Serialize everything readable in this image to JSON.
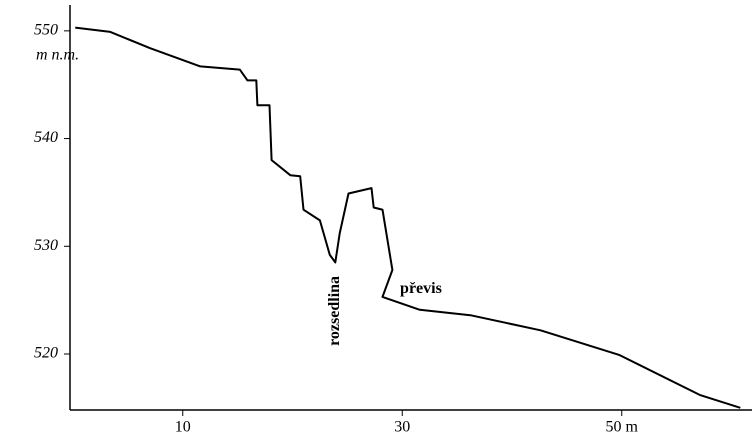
{
  "chart_data": {
    "type": "line",
    "y_label": "m n.m.",
    "x": [
      0.2,
      3.4,
      7.0,
      11.6,
      15.2,
      15.9,
      16.7,
      16.8,
      17.9,
      18.1,
      19.8,
      20.7,
      21.0,
      22.5,
      23.4,
      23.9,
      24.3,
      25.1,
      27.2,
      27.4,
      28.2,
      29.1,
      28.2,
      31.6,
      36.2,
      42.6,
      49.8,
      57.1,
      60.8
    ],
    "values": [
      550.3,
      549.9,
      548.4,
      546.7,
      546.4,
      545.4,
      545.4,
      543.1,
      543.1,
      538.0,
      536.6,
      536.5,
      533.4,
      532.4,
      529.2,
      528.5,
      531.2,
      534.9,
      535.4,
      533.6,
      533.4,
      527.8,
      525.3,
      524.1,
      523.6,
      522.2,
      519.9,
      516.2,
      515.0
    ],
    "color": "#000000",
    "xlim": [
      0,
      61.5
    ],
    "ylim": [
      514.8,
      552.4
    ],
    "xticks": [
      10,
      30,
      {
        "value": 50,
        "label": "50 m"
      }
    ],
    "yticks": [
      520,
      530,
      540,
      550
    ],
    "annotations": [
      {
        "text": "rozsedlina",
        "x": 23.9,
        "y": 524.0
      },
      {
        "text": "převis",
        "x": 29.8,
        "y": 526.0
      }
    ]
  }
}
